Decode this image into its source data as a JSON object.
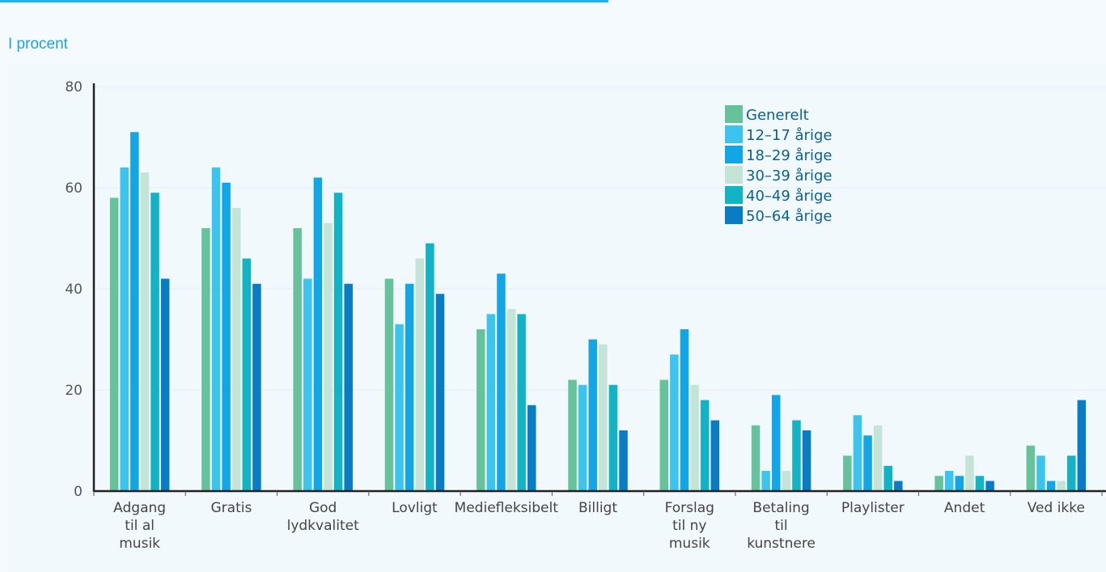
{
  "header": {
    "unit_label": "I procent"
  },
  "chart_data": {
    "type": "bar",
    "ylabel": "I procent",
    "ylim": [
      0,
      80
    ],
    "yticks": [
      0,
      20,
      40,
      60,
      80
    ],
    "grid": true,
    "legend_position": "top-right",
    "categories": [
      [
        "Adgang",
        "til al",
        "musik"
      ],
      [
        "Gratis"
      ],
      [
        "God",
        "lydkvalitet"
      ],
      [
        "Lovligt"
      ],
      [
        "Mediefleksibelt"
      ],
      [
        "Billigt"
      ],
      [
        "Forslag",
        "til ny",
        "musik"
      ],
      [
        "Betaling",
        "til",
        "kunstnere"
      ],
      [
        "Playlister"
      ],
      [
        "Andet"
      ],
      [
        "Ved ikke"
      ]
    ],
    "series": [
      {
        "name": "Generelt",
        "color": "#66c29a",
        "values": [
          58,
          52,
          52,
          42,
          32,
          22,
          22,
          13,
          7,
          3,
          9
        ]
      },
      {
        "name": "12–17 årige",
        "color": "#3cc4ee",
        "values": [
          64,
          64,
          42,
          33,
          35,
          21,
          27,
          4,
          15,
          4,
          7
        ]
      },
      {
        "name": "18–29 årige",
        "color": "#13a6e6",
        "values": [
          71,
          61,
          62,
          41,
          43,
          30,
          32,
          19,
          11,
          3,
          2
        ]
      },
      {
        "name": "30–39 årige",
        "color": "#c3e4d6",
        "values": [
          63,
          56,
          53,
          46,
          36,
          29,
          21,
          4,
          13,
          7,
          2
        ]
      },
      {
        "name": "40–49 årige",
        "color": "#12b3c4",
        "values": [
          59,
          46,
          59,
          49,
          35,
          21,
          18,
          14,
          5,
          3,
          7
        ]
      },
      {
        "name": "50–64 årige",
        "color": "#0a7cc6",
        "values": [
          42,
          41,
          41,
          39,
          17,
          12,
          14,
          12,
          2,
          2,
          18
        ]
      }
    ]
  }
}
